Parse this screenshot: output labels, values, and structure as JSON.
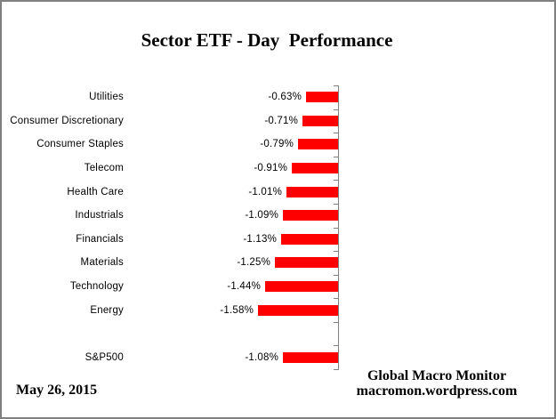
{
  "page": {
    "title": "Sector ETF - Day  Performance"
  },
  "footer": {
    "date": "May 26, 2015",
    "attribution": [
      "Global Macro Monitor",
      "macromon.wordpress.com"
    ]
  },
  "colors": {
    "bar": "#FF0000",
    "axis": "#808080",
    "border": "#808080",
    "text": "#000000",
    "background": "#FFFFFF"
  },
  "chart_data": {
    "type": "bar",
    "orientation": "horizontal",
    "title": "Sector ETF - Day  Performance",
    "categories": [
      "Utilities",
      "Consumer Discretionary",
      "Consumer Staples",
      "Telecom",
      "Health Care",
      "Industrials",
      "Financials",
      "Materials",
      "Technology",
      "Energy",
      "",
      "S&P500"
    ],
    "values": [
      -0.63,
      -0.71,
      -0.79,
      -0.91,
      -1.01,
      -1.09,
      -1.13,
      -1.25,
      -1.44,
      -1.58,
      null,
      -1.08
    ],
    "value_labels": [
      "-0.63%",
      "-0.71%",
      "-0.79%",
      "-0.91%",
      "-1.01%",
      "-1.09%",
      "-1.13%",
      "-1.25%",
      "-1.44%",
      "-1.58%",
      "",
      "-1.08%"
    ],
    "xlim": [
      -2,
      0
    ],
    "xlabel": "",
    "ylabel": "",
    "grid": false,
    "legend": false,
    "bar_color": "#FF0000",
    "zero_axis_side": "right",
    "value_label_position": "outside-end-of-bar",
    "sorted": "ascending-loss"
  }
}
